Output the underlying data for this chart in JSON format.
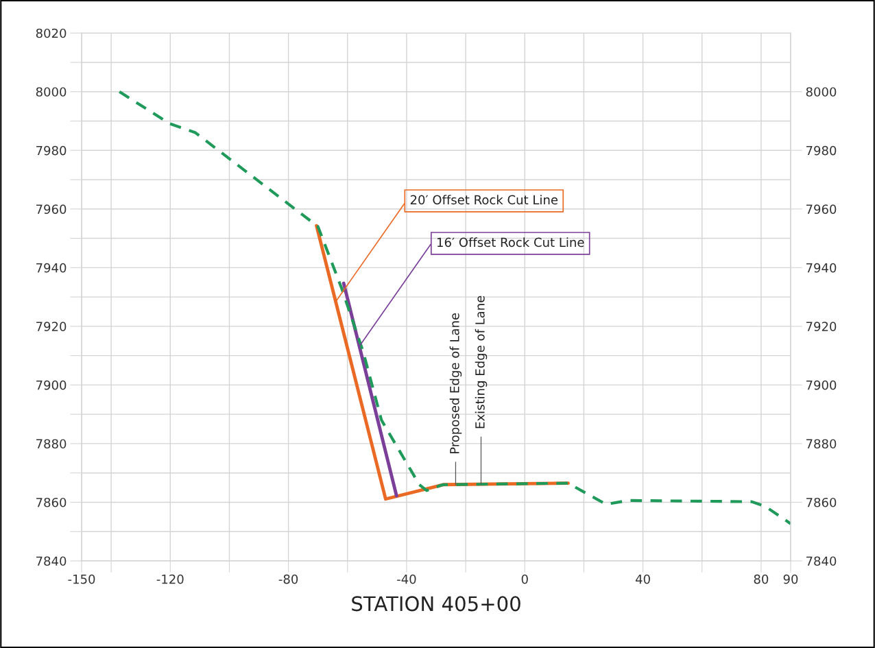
{
  "chart_data": {
    "type": "line",
    "xlabel": "STATION 405+00",
    "xlim": [
      -150,
      90
    ],
    "ylim": [
      7840,
      8020
    ],
    "xticks": [
      -150,
      {
        "value": -140,
        "label": null
      },
      -120,
      {
        "value": -100,
        "label": null
      },
      -80,
      {
        "value": -60,
        "label": null
      },
      -40,
      {
        "value": -20,
        "label": null
      },
      0,
      {
        "value": 20,
        "label": null
      },
      40,
      {
        "value": 60,
        "label": null
      },
      80,
      90
    ],
    "yticks": [
      7840,
      {
        "value": 7850,
        "label": null
      },
      7860,
      {
        "value": 7870,
        "label": null
      },
      7880,
      {
        "value": 7890,
        "label": null
      },
      7900,
      {
        "value": 7910,
        "label": null
      },
      7920,
      {
        "value": 7930,
        "label": null
      },
      7940,
      {
        "value": 7950,
        "label": null
      },
      7960,
      {
        "value": 7970,
        "label": null
      },
      7980,
      {
        "value": 7990,
        "label": null
      },
      8000,
      {
        "value": 8010,
        "label": null
      },
      8020
    ],
    "y2lim": [
      7840,
      8020
    ],
    "y2ticks": [
      7840,
      7860,
      7880,
      7900,
      7920,
      7940,
      7960,
      7980,
      8000
    ],
    "grid": true,
    "marker": "none",
    "series": [
      {
        "color": "#ea6a25",
        "line_style": "solid",
        "x": [
          -70.5,
          -47.1,
          -27.6,
          14.7
        ],
        "values": [
          7954.3,
          7861.1,
          7866,
          7866.5
        ]
      },
      {
        "color": "#7b3f9a",
        "line_style": "solid",
        "x": [
          -61.3,
          -43.4
        ],
        "values": [
          7934.7,
          7862.2
        ]
      },
      {
        "color": "#1f9a5a",
        "line_style": "dashed",
        "x": [
          -137.2,
          -120.2,
          -111.6,
          -70,
          -62,
          -54.7,
          -48.5,
          -35.7,
          -33.2,
          -27.7,
          14.7,
          27.5,
          34.9,
          76.8,
          81.4,
          90
        ],
        "values": [
          8000,
          7989.1,
          7986.1,
          7954,
          7933,
          7911.3,
          7888,
          7866,
          7864,
          7866,
          7866.5,
          7859.3,
          7860.6,
          7860.2,
          7858.6,
          7852.7
        ]
      }
    ],
    "annotations": [
      {
        "text": "20′ Offset Rock Cut Line",
        "x": -64,
        "y": 7928.4
      },
      {
        "text": "16′ Offset Rock Cut Line",
        "x": -56,
        "y": 7913.2
      },
      {
        "text": "Proposed Edge of Lane",
        "x": -23.4,
        "y": 7866
      },
      {
        "text": "Existing Edge of Lane",
        "x": -14.8,
        "y": 7866.2
      }
    ]
  }
}
